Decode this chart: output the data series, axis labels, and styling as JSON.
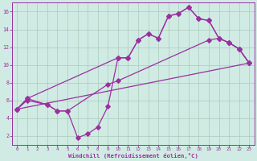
{
  "line1_x": [
    0,
    1,
    3,
    4,
    5,
    6,
    7,
    8,
    9,
    10,
    11,
    12,
    13,
    14,
    15,
    16,
    17,
    18,
    19,
    20,
    21,
    22,
    23
  ],
  "line1_y": [
    5.0,
    6.2,
    5.5,
    4.8,
    4.8,
    1.8,
    2.2,
    3.0,
    5.3,
    10.8,
    10.8,
    12.8,
    13.5,
    13.0,
    15.5,
    15.8,
    16.5,
    15.2,
    15.0,
    13.0,
    12.5,
    11.8,
    10.2
  ],
  "line2_x": [
    0,
    1,
    10,
    11,
    12,
    13,
    14,
    15,
    16,
    17,
    18,
    19,
    20,
    21,
    22,
    23
  ],
  "line2_y": [
    5.0,
    6.2,
    10.8,
    10.8,
    12.8,
    13.5,
    13.0,
    15.5,
    15.8,
    16.5,
    15.2,
    15.0,
    13.0,
    12.5,
    11.8,
    10.2
  ],
  "line3_x": [
    0,
    1,
    3,
    4,
    5,
    9,
    10,
    19,
    20,
    21,
    22,
    23
  ],
  "line3_y": [
    5.0,
    6.0,
    5.5,
    4.8,
    4.8,
    7.8,
    8.2,
    12.8,
    13.0,
    12.5,
    11.8,
    10.2
  ],
  "line4_x": [
    0,
    23
  ],
  "line4_y": [
    5.0,
    10.2
  ],
  "color": "#9B30A0",
  "bg_color": "#D0EBE3",
  "grid_color": "#A8CCB8",
  "xlabel": "Windchill (Refroidissement éolien,°C)",
  "xlim": [
    -0.5,
    23.5
  ],
  "ylim": [
    1,
    17
  ],
  "yticks": [
    2,
    4,
    6,
    8,
    10,
    12,
    14,
    16
  ],
  "xticks": [
    0,
    1,
    2,
    3,
    4,
    5,
    6,
    7,
    8,
    9,
    10,
    11,
    12,
    13,
    14,
    15,
    16,
    17,
    18,
    19,
    20,
    21,
    22,
    23
  ]
}
